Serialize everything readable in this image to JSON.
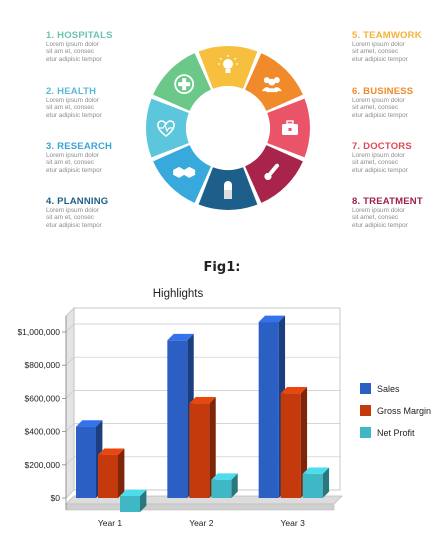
{
  "infographic": {
    "left": [
      {
        "title": "1. HOSPITALS",
        "color": "#6cc4b0",
        "lines": [
          "Lorem ipsum dolor",
          "sit am et, consec",
          "etur adipisic tempor"
        ]
      },
      {
        "title": "2. HEALTH",
        "color": "#5bb8d6",
        "lines": [
          "Lorem ipsum dolor",
          "sit am et, consec",
          "etur adipisic tempor"
        ]
      },
      {
        "title": "3. RESEARCH",
        "color": "#3aa3d6",
        "lines": [
          "Lorem ipsum dolor",
          "sit am et, consec",
          "etur adipisic tempor"
        ]
      },
      {
        "title": "4. PLANNING",
        "color": "#1f5f86",
        "lines": [
          "Lorem ipsum dolor",
          "sit am et, consec",
          "etur adipisic tempor"
        ]
      }
    ],
    "right": [
      {
        "title": "5. TEAMWORK",
        "color": "#f3b23a",
        "lines": [
          "Lorem ipsum dolor",
          "sit amet, consec",
          "etur adipisic tempor"
        ]
      },
      {
        "title": "6. BUSINESS",
        "color": "#f08a2a",
        "lines": [
          "Lorem ipsum dolor",
          "sit amet, consec",
          "etur adipisic tempor"
        ]
      },
      {
        "title": "7. DOCTORS",
        "color": "#e2475a",
        "lines": [
          "Lorem ipsum dolor",
          "sit amet, consec",
          "etur adipisic tempor"
        ]
      },
      {
        "title": "8. TREATMENT",
        "color": "#9e2045",
        "lines": [
          "Lorem ipsum dolor",
          "sit amet, consec",
          "etur adipisic tempor"
        ]
      }
    ],
    "segments": [
      {
        "name": "hospital-cross-icon",
        "color": "#6cc889"
      },
      {
        "name": "lightbulb-icon",
        "color": "#f6c03e"
      },
      {
        "name": "team-icon",
        "color": "#f08a2a"
      },
      {
        "name": "briefcase-icon",
        "color": "#ea5468"
      },
      {
        "name": "thermometer-icon",
        "color": "#a8244a"
      },
      {
        "name": "pill-icon",
        "color": "#1d5f8a"
      },
      {
        "name": "handshake-icon",
        "color": "#38a9dc"
      },
      {
        "name": "heartbeat-icon",
        "color": "#5cc6dc"
      }
    ]
  },
  "figure": {
    "caption": "Fig1:"
  },
  "chart_data": {
    "type": "bar",
    "title": "Highlights",
    "categories": [
      "Year 1",
      "Year 2",
      "Year 3"
    ],
    "series": [
      {
        "name": "Sales",
        "color": "#2b5fc4",
        "values": [
          430000,
          950000,
          1060000
        ]
      },
      {
        "name": "Gross Margin",
        "color": "#c43a0c",
        "values": [
          260000,
          570000,
          630000
        ]
      },
      {
        "name": "Net Profit",
        "color": "#3fb7c4",
        "values": [
          -90000,
          110000,
          145000
        ]
      }
    ],
    "yticks": [
      "$1,000,000",
      "$800,000",
      "$600,000",
      "$400,000",
      "$200,000",
      "$0"
    ],
    "ylim": [
      -100000,
      1000000
    ],
    "legend": "right",
    "grid": true
  }
}
